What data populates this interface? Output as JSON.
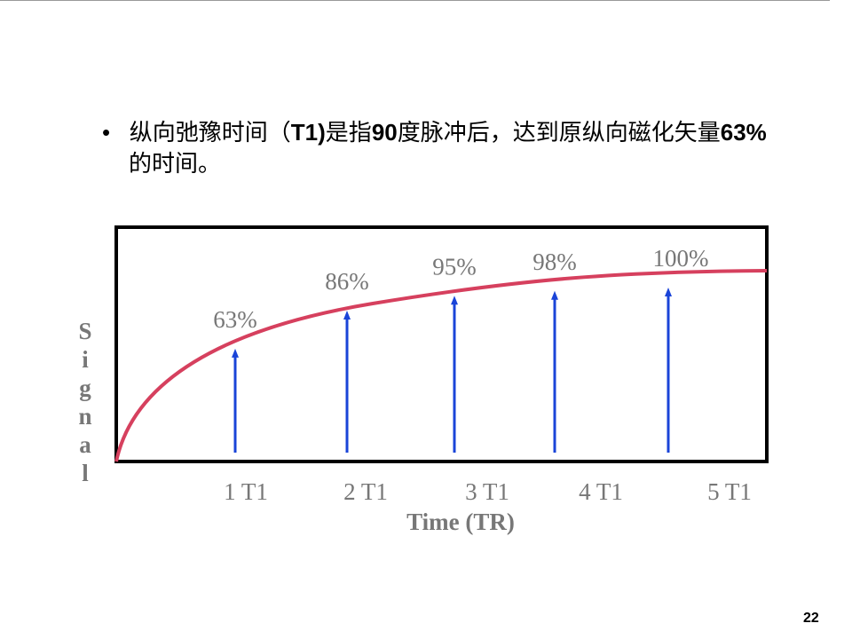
{
  "slide": {
    "bullet": [
      {
        "text": "纵向弛豫时间（",
        "bold": false
      },
      {
        "text": "T1)",
        "bold": true
      },
      {
        "text": "是指",
        "bold": false
      },
      {
        "text": "90",
        "bold": true
      },
      {
        "text": "度脉冲后，达到原纵向磁化矢量",
        "bold": false
      },
      {
        "text": "63%",
        "bold": true
      },
      {
        "text": "的时间。",
        "bold": false
      }
    ],
    "page_number": "22"
  },
  "chart_data": {
    "type": "arrow",
    "categories": [
      "1 T1",
      "2 T1",
      "3 T1",
      "4 T1",
      "5 T1"
    ],
    "values": [
      63,
      86,
      95,
      98,
      100
    ],
    "value_labels": [
      "63%",
      "86%",
      "95%",
      "98%",
      "100%"
    ],
    "x_label": "Time (TR)",
    "y_label": "Signal",
    "color": "#1a44d8",
    "curve_color": "#d6405e"
  }
}
